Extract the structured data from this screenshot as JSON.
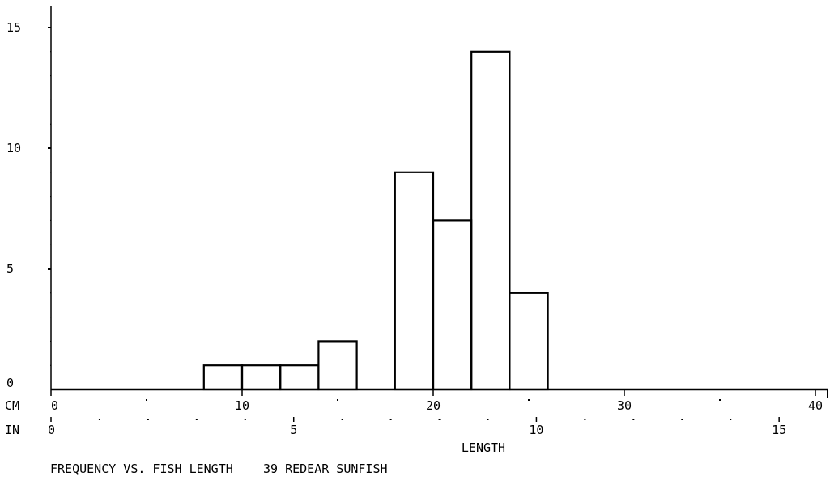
{
  "chart_data": {
    "type": "bar",
    "title": "FREQUENCY VS. FISH LENGTH",
    "subtitle": "39 REDEAR SUNFISH",
    "xlabel": "LENGTH",
    "ylabel": "",
    "xlim": [
      0,
      41
    ],
    "ylim": [
      0,
      16
    ],
    "y_ticks": [
      0,
      5,
      10,
      15
    ],
    "x_ticks_cm": [
      0,
      10,
      20,
      30,
      40
    ],
    "x_ticks_in": [
      0,
      5,
      10,
      15
    ],
    "axis_unit_cm": "CM",
    "axis_unit_in": "IN",
    "bins": [
      {
        "x0": 8,
        "x1": 10,
        "value": 1
      },
      {
        "x0": 10,
        "x1": 12,
        "value": 1
      },
      {
        "x0": 12,
        "x1": 14,
        "value": 1
      },
      {
        "x0": 14,
        "x1": 16,
        "value": 2
      },
      {
        "x0": 18,
        "x1": 20,
        "value": 9
      },
      {
        "x0": 20,
        "x1": 22,
        "value": 7
      },
      {
        "x0": 22,
        "x1": 24,
        "value": 14
      },
      {
        "x0": 24,
        "x1": 26,
        "value": 4
      }
    ],
    "grid": false,
    "legend": "none"
  }
}
